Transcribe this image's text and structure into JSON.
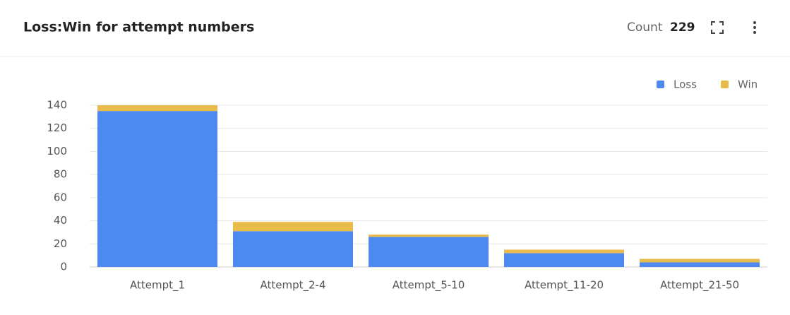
{
  "header": {
    "title": "Loss:Win for attempt numbers",
    "count_label": "Count",
    "count": 229
  },
  "chart_data": {
    "type": "stacked_bar",
    "categories": [
      "Attempt_1",
      "Attempt_2-4",
      "Attempt_5-10",
      "Attempt_11-20",
      "Attempt_21-50"
    ],
    "series": [
      {
        "name": "Loss",
        "color": "#4d8af0",
        "values": [
          135,
          31,
          26,
          12,
          4
        ]
      },
      {
        "name": "Win",
        "color": "#e9bb4a",
        "values": [
          5,
          8,
          2,
          3,
          3
        ]
      }
    ],
    "ylim": [
      0,
      140
    ],
    "yticks": [
      0,
      20,
      40,
      60,
      80,
      100,
      120,
      140
    ],
    "grid": true,
    "legend": "top-right"
  }
}
